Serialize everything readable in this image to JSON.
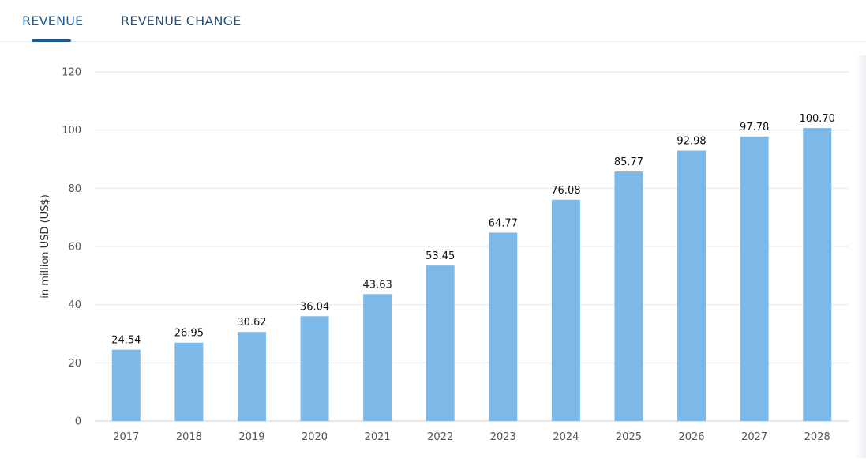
{
  "tabs": [
    {
      "label": "REVENUE",
      "active": true
    },
    {
      "label": "REVENUE CHANGE",
      "active": false
    }
  ],
  "colors": {
    "accent": "#1d5b96",
    "bar": "#7db9e8",
    "grid": "#e3e6ea"
  },
  "chart_data": {
    "type": "bar",
    "categories": [
      "2017",
      "2018",
      "2019",
      "2020",
      "2021",
      "2022",
      "2023",
      "2024",
      "2025",
      "2026",
      "2027",
      "2028"
    ],
    "values": [
      24.54,
      26.95,
      30.62,
      36.04,
      43.63,
      53.45,
      64.77,
      76.08,
      85.77,
      92.98,
      97.78,
      100.7
    ],
    "value_labels": [
      "24.54",
      "26.95",
      "30.62",
      "36.04",
      "43.63",
      "53.45",
      "64.77",
      "76.08",
      "85.77",
      "92.98",
      "97.78",
      "100.70"
    ],
    "ylabel": "in million USD (US$)",
    "ylim": [
      0,
      120
    ],
    "yticks": [
      0,
      20,
      40,
      60,
      80,
      100,
      120
    ],
    "grid": true
  }
}
